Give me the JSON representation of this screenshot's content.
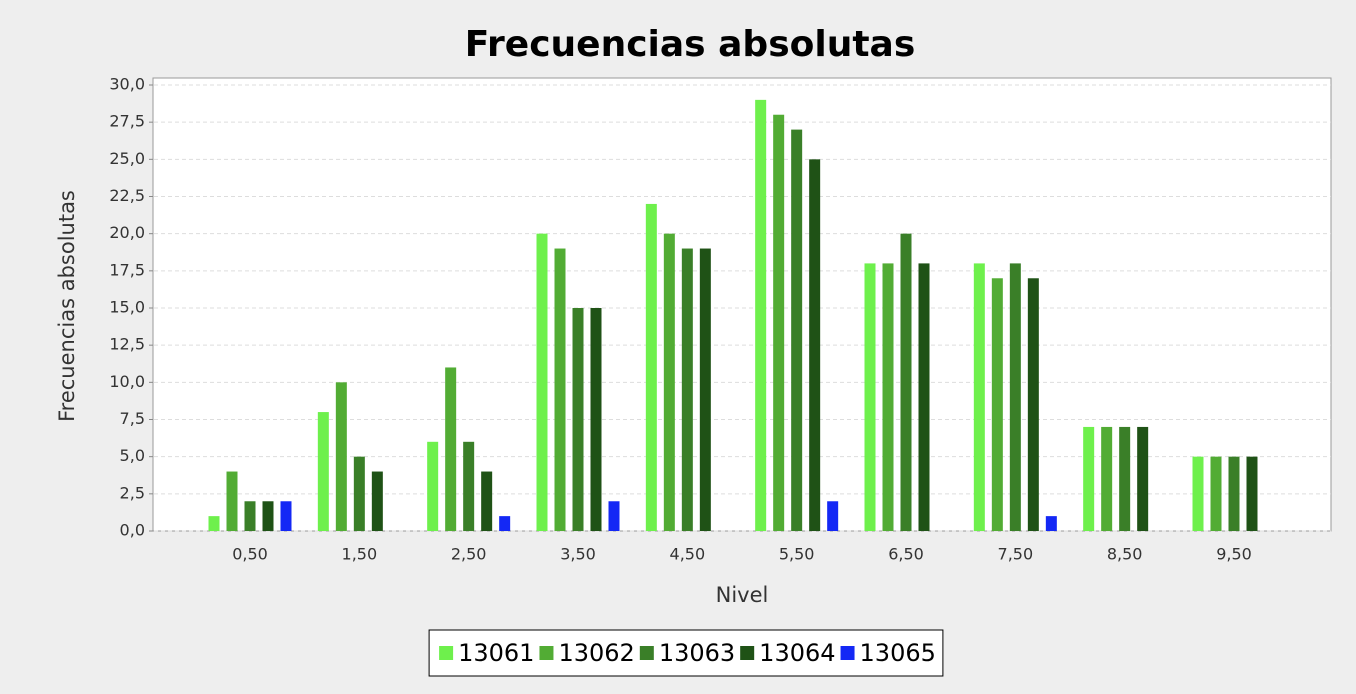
{
  "chart_data": {
    "type": "bar",
    "title": "Frecuencias absolutas",
    "x_label": "Nivel",
    "y_label": "Frecuencias absolutas",
    "categories": [
      "0,50",
      "1,50",
      "2,50",
      "3,50",
      "4,50",
      "5,50",
      "6,50",
      "7,50",
      "8,50",
      "9,50"
    ],
    "series": [
      {
        "name": "13061",
        "color": "#6ef04c",
        "values": [
          1,
          8,
          6,
          20,
          22,
          29,
          18,
          18,
          7,
          5
        ]
      },
      {
        "name": "13062",
        "color": "#52ac34",
        "values": [
          4,
          10,
          11,
          19,
          20,
          28,
          18,
          17,
          7,
          5
        ]
      },
      {
        "name": "13063",
        "color": "#3a7f28",
        "values": [
          2,
          5,
          6,
          15,
          19,
          27,
          20,
          18,
          7,
          5
        ]
      },
      {
        "name": "13064",
        "color": "#1f5216",
        "values": [
          2,
          4,
          4,
          15,
          19,
          25,
          18,
          17,
          7,
          5
        ]
      },
      {
        "name": "13065",
        "color": "#1428f5",
        "values": [
          2,
          0,
          1,
          2,
          0,
          2,
          0,
          1,
          0,
          0
        ]
      }
    ],
    "ylim": [
      0,
      30
    ],
    "yticks": [
      {
        "value": 0,
        "label": "0,0"
      },
      {
        "value": 2.5,
        "label": "2,5"
      },
      {
        "value": 5,
        "label": "5,0"
      },
      {
        "value": 7.5,
        "label": "7,5"
      },
      {
        "value": 10,
        "label": "10,0"
      },
      {
        "value": 12.5,
        "label": "12,5"
      },
      {
        "value": 15,
        "label": "15,0"
      },
      {
        "value": 17.5,
        "label": "17,5"
      },
      {
        "value": 20,
        "label": "20,0"
      },
      {
        "value": 22.5,
        "label": "22,5"
      },
      {
        "value": 25,
        "label": "25,0"
      },
      {
        "value": 27.5,
        "label": "27,5"
      },
      {
        "value": 30,
        "label": "30,0"
      }
    ],
    "grid": true,
    "legend": "bottom"
  }
}
